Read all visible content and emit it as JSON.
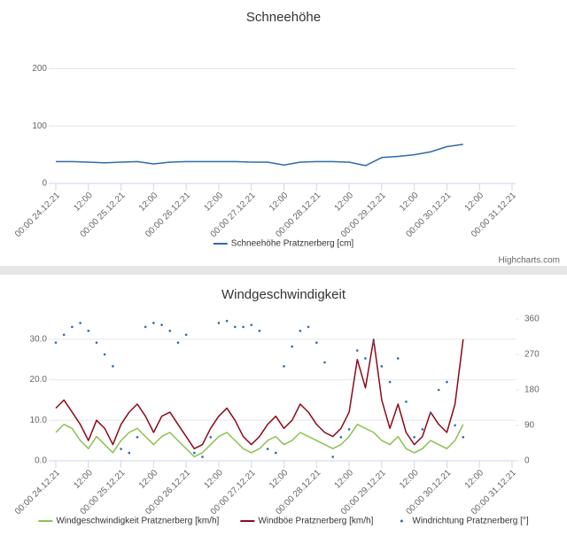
{
  "chart_data": [
    {
      "type": "line",
      "title": "Schneehöhe",
      "x": [
        "2021-12-24T00:00",
        "2021-12-24T06:00",
        "2021-12-24T12:00",
        "2021-12-24T18:00",
        "2021-12-25T00:00",
        "2021-12-25T06:00",
        "2021-12-25T12:00",
        "2021-12-25T18:00",
        "2021-12-26T00:00",
        "2021-12-26T06:00",
        "2021-12-26T12:00",
        "2021-12-26T18:00",
        "2021-12-27T00:00",
        "2021-12-27T06:00",
        "2021-12-27T12:00",
        "2021-12-27T18:00",
        "2021-12-28T00:00",
        "2021-12-28T06:00",
        "2021-12-28T12:00",
        "2021-12-28T18:00",
        "2021-12-29T00:00",
        "2021-12-29T06:00",
        "2021-12-29T12:00",
        "2021-12-29T18:00",
        "2021-12-30T00:00",
        "2021-12-30T06:00"
      ],
      "xlim": [
        "2021-12-24T00:00",
        "2021-12-31T00:00"
      ],
      "xticks": [
        {
          "value": "2021-12-24T00:00",
          "label": "00:00 24.12.21"
        },
        {
          "value": "2021-12-24T12:00",
          "label": "12:00"
        },
        {
          "value": "2021-12-25T00:00",
          "label": "00:00 25.12.21"
        },
        {
          "value": "2021-12-25T12:00",
          "label": "12:00"
        },
        {
          "value": "2021-12-26T00:00",
          "label": "00:00 26.12.21"
        },
        {
          "value": "2021-12-26T12:00",
          "label": "12:00"
        },
        {
          "value": "2021-12-27T00:00",
          "label": "00:00 27.12.21"
        },
        {
          "value": "2021-12-27T12:00",
          "label": "12:00"
        },
        {
          "value": "2021-12-28T00:00",
          "label": "00:00 28.12.21"
        },
        {
          "value": "2021-12-28T12:00",
          "label": "12:00"
        },
        {
          "value": "2021-12-29T00:00",
          "label": "00:00 29.12.21"
        },
        {
          "value": "2021-12-29T12:00",
          "label": "12:00"
        },
        {
          "value": "2021-12-30T00:00",
          "label": "00:00 30.12.21"
        },
        {
          "value": "2021-12-30T12:00",
          "label": "12:00"
        },
        {
          "value": "2021-12-31T00:00",
          "label": "00:00 31.12.21"
        }
      ],
      "ylim": [
        0,
        250
      ],
      "yticks": [
        0,
        100,
        200
      ],
      "grid": true,
      "legend": "bottom",
      "series": [
        {
          "name": "Schneehöhe Pratznerberg [cm]",
          "color": "#2f6ba8",
          "values": [
            38,
            38,
            37,
            36,
            37,
            38,
            34,
            37,
            38,
            38,
            38,
            38,
            37,
            37,
            32,
            37,
            38,
            38,
            37,
            31,
            45,
            47,
            50,
            55,
            64,
            68
          ]
        }
      ],
      "credits": "Highcharts.com"
    },
    {
      "type": "line",
      "title": "Windgeschwindigkeit",
      "x": [
        "2021-12-24T00:00",
        "2021-12-24T03:00",
        "2021-12-24T06:00",
        "2021-12-24T09:00",
        "2021-12-24T12:00",
        "2021-12-24T15:00",
        "2021-12-24T18:00",
        "2021-12-24T21:00",
        "2021-12-25T00:00",
        "2021-12-25T03:00",
        "2021-12-25T06:00",
        "2021-12-25T09:00",
        "2021-12-25T12:00",
        "2021-12-25T15:00",
        "2021-12-25T18:00",
        "2021-12-25T21:00",
        "2021-12-26T00:00",
        "2021-12-26T03:00",
        "2021-12-26T06:00",
        "2021-12-26T09:00",
        "2021-12-26T12:00",
        "2021-12-26T15:00",
        "2021-12-26T18:00",
        "2021-12-26T21:00",
        "2021-12-27T00:00",
        "2021-12-27T03:00",
        "2021-12-27T06:00",
        "2021-12-27T09:00",
        "2021-12-27T12:00",
        "2021-12-27T15:00",
        "2021-12-27T18:00",
        "2021-12-27T21:00",
        "2021-12-28T00:00",
        "2021-12-28T03:00",
        "2021-12-28T06:00",
        "2021-12-28T09:00",
        "2021-12-28T12:00",
        "2021-12-28T15:00",
        "2021-12-28T18:00",
        "2021-12-28T21:00",
        "2021-12-29T00:00",
        "2021-12-29T03:00",
        "2021-12-29T06:00",
        "2021-12-29T09:00",
        "2021-12-29T12:00",
        "2021-12-29T15:00",
        "2021-12-29T18:00",
        "2021-12-29T21:00",
        "2021-12-30T00:00",
        "2021-12-30T03:00",
        "2021-12-30T06:00"
      ],
      "xlim": [
        "2021-12-24T00:00",
        "2021-12-31T00:00"
      ],
      "xticks": [
        {
          "value": "2021-12-24T00:00",
          "label": "00:00 24.12.21"
        },
        {
          "value": "2021-12-24T12:00",
          "label": "12:00"
        },
        {
          "value": "2021-12-25T00:00",
          "label": "00:00 25.12.21"
        },
        {
          "value": "2021-12-25T12:00",
          "label": "12:00"
        },
        {
          "value": "2021-12-26T00:00",
          "label": "00:00 26.12.21"
        },
        {
          "value": "2021-12-26T12:00",
          "label": "12:00"
        },
        {
          "value": "2021-12-27T00:00",
          "label": "00:00 27.12.21"
        },
        {
          "value": "2021-12-27T12:00",
          "label": "12:00"
        },
        {
          "value": "2021-12-28T00:00",
          "label": "00:00 28.12.21"
        },
        {
          "value": "2021-12-28T12:00",
          "label": "12:00"
        },
        {
          "value": "2021-12-29T00:00",
          "label": "00:00 29.12.21"
        },
        {
          "value": "2021-12-29T12:00",
          "label": "12:00"
        },
        {
          "value": "2021-12-30T00:00",
          "label": "00:00 30.12.21"
        },
        {
          "value": "2021-12-30T12:00",
          "label": "12:00"
        },
        {
          "value": "2021-12-31T00:00",
          "label": "00:00 31.12.21"
        }
      ],
      "ylim": [
        0,
        35
      ],
      "yticks": [
        {
          "value": 0,
          "label": "0.0"
        },
        {
          "value": 10,
          "label": "10.0"
        },
        {
          "value": 20,
          "label": "20.0"
        },
        {
          "value": 30,
          "label": "30.0"
        }
      ],
      "y2lim": [
        0,
        360
      ],
      "y2ticks": [
        0,
        90,
        180,
        270,
        360
      ],
      "grid": true,
      "legend": "bottom",
      "series": [
        {
          "name": "Windgeschwindigkeit Pratznerberg [km/h]",
          "color": "#8cc152",
          "values": [
            7,
            9,
            8,
            5,
            3,
            6,
            4,
            2,
            5,
            7,
            8,
            6,
            4,
            6,
            7,
            5,
            3,
            1,
            2,
            4,
            6,
            7,
            5,
            3,
            2,
            3,
            5,
            6,
            4,
            5,
            7,
            6,
            5,
            4,
            3,
            4,
            6,
            9,
            8,
            7,
            5,
            4,
            6,
            3,
            2,
            3,
            5,
            4,
            3,
            5,
            9
          ]
        },
        {
          "name": "Windböe Pratznerberg [km/h]",
          "color": "#8b0a1a",
          "values": [
            13,
            15,
            12,
            9,
            5,
            10,
            8,
            4,
            9,
            12,
            14,
            11,
            7,
            11,
            12,
            9,
            6,
            3,
            4,
            8,
            11,
            13,
            10,
            6,
            4,
            6,
            9,
            11,
            8,
            10,
            14,
            12,
            9,
            7,
            6,
            8,
            12,
            25,
            18,
            30,
            15,
            8,
            14,
            7,
            4,
            6,
            12,
            9,
            7,
            14,
            30
          ]
        },
        {
          "name": "Windrichtung Pratznerberg [°]",
          "color": "#2f6ba8",
          "type": "scatter",
          "axis": "y2",
          "values": [
            300,
            320,
            340,
            350,
            330,
            300,
            270,
            240,
            30,
            20,
            60,
            340,
            350,
            345,
            330,
            300,
            320,
            20,
            10,
            60,
            350,
            355,
            340,
            340,
            345,
            330,
            30,
            20,
            240,
            290,
            330,
            340,
            300,
            250,
            10,
            60,
            80,
            280,
            260,
            300,
            240,
            200,
            260,
            150,
            60,
            80,
            120,
            180,
            200,
            90,
            60
          ]
        }
      ]
    }
  ]
}
